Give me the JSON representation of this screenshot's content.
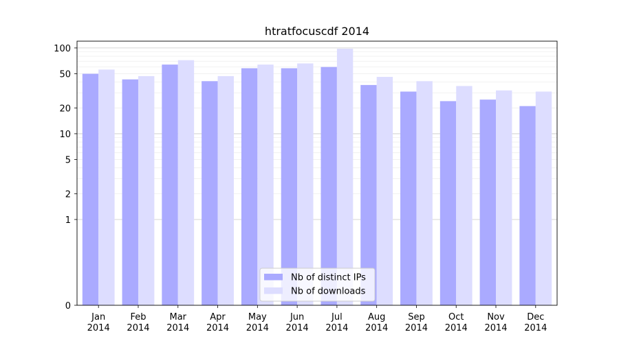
{
  "chart_data": {
    "type": "bar",
    "title": "htratfocuscdf 2014",
    "scale": "symlog",
    "yticks": [
      0,
      1,
      2,
      5,
      10,
      20,
      50,
      100
    ],
    "ylim": [
      0,
      120
    ],
    "categories": [
      [
        "Jan",
        "2014"
      ],
      [
        "Feb",
        "2014"
      ],
      [
        "Mar",
        "2014"
      ],
      [
        "Apr",
        "2014"
      ],
      [
        "May",
        "2014"
      ],
      [
        "Jun",
        "2014"
      ],
      [
        "Jul",
        "2014"
      ],
      [
        "Aug",
        "2014"
      ],
      [
        "Sep",
        "2014"
      ],
      [
        "Oct",
        "2014"
      ],
      [
        "Nov",
        "2014"
      ],
      [
        "Dec",
        "2014"
      ]
    ],
    "series": [
      {
        "name": "Nb of distinct IPs",
        "color": "#aaaaff",
        "values": [
          50,
          43,
          64,
          41,
          58,
          58,
          60,
          37,
          31,
          24,
          25,
          21
        ]
      },
      {
        "name": "Nb of downloads",
        "color": "#ddddff",
        "values": [
          56,
          47,
          72,
          47,
          64,
          66,
          98,
          46,
          41,
          36,
          32,
          31
        ]
      }
    ],
    "grid": true,
    "legend_position": "bottom-center"
  }
}
